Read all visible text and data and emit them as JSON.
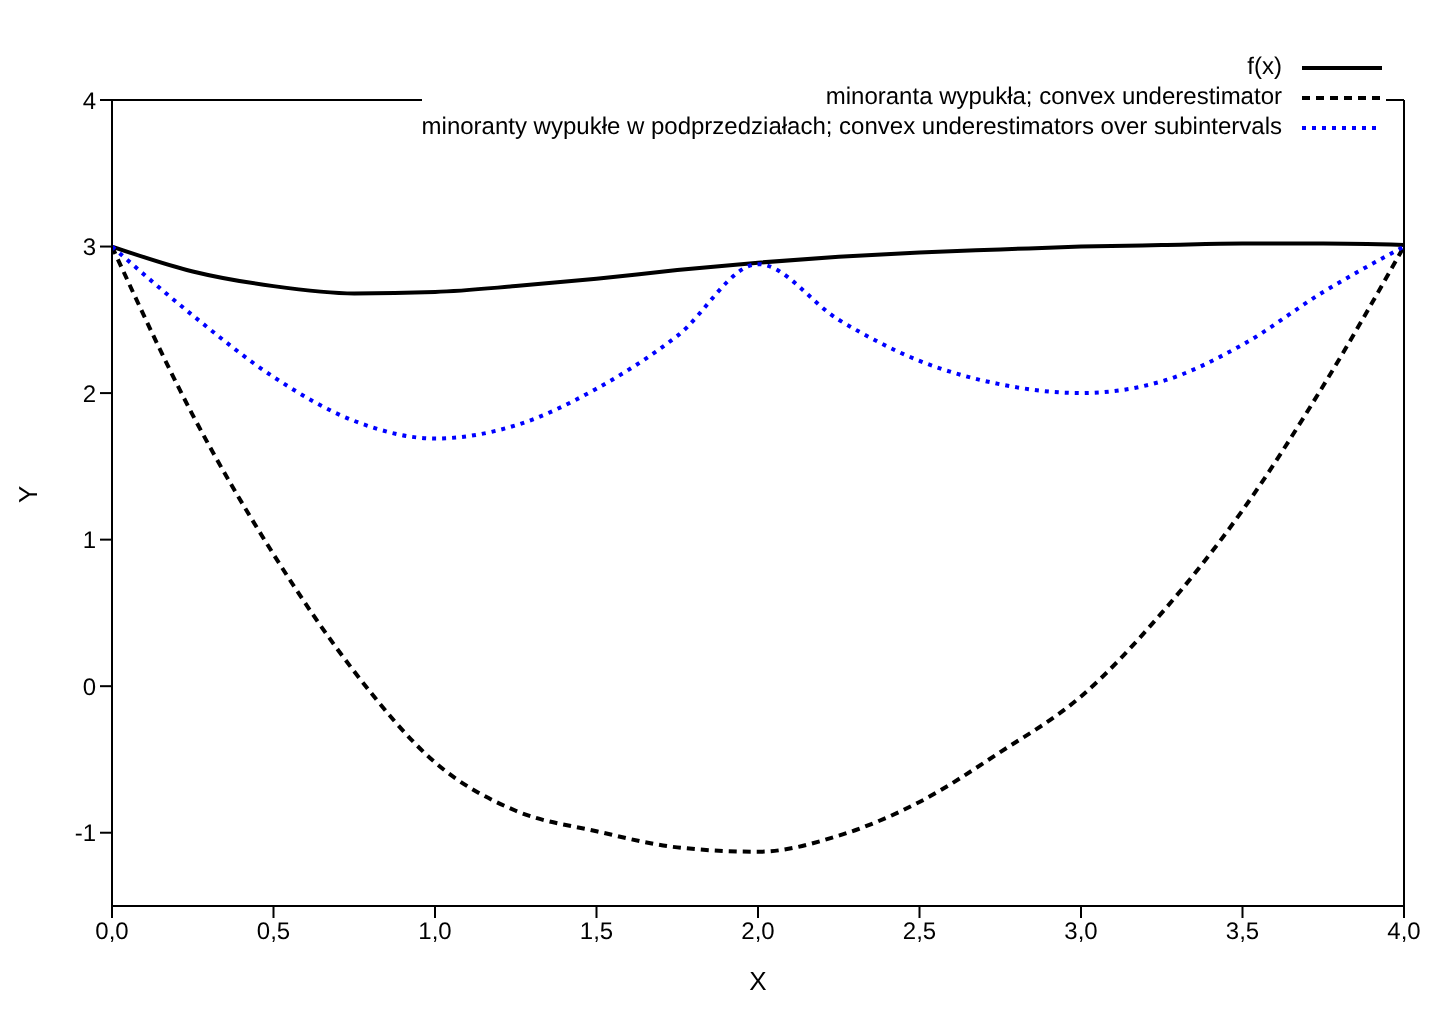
{
  "chart_data": {
    "type": "line",
    "xlabel": "X",
    "ylabel": "Y",
    "xlim": [
      0,
      4
    ],
    "ylim": [
      -1.5,
      4
    ],
    "xticks": [
      {
        "value": 0,
        "label": "0,0"
      },
      {
        "value": 0.5,
        "label": "0,5"
      },
      {
        "value": 1,
        "label": "1,0"
      },
      {
        "value": 1.5,
        "label": "1,5"
      },
      {
        "value": 2,
        "label": "2,0"
      },
      {
        "value": 2.5,
        "label": "2,5"
      },
      {
        "value": 3,
        "label": "3,0"
      },
      {
        "value": 3.5,
        "label": "3,5"
      },
      {
        "value": 4,
        "label": "4,0"
      }
    ],
    "yticks": [
      -1,
      0,
      1,
      2,
      3,
      4
    ],
    "grid": false,
    "legend": "top right",
    "marker": "none",
    "x": [
      0,
      0.25,
      0.5,
      0.75,
      1,
      1.25,
      1.5,
      1.75,
      2,
      2.25,
      2.5,
      2.75,
      3,
      3.25,
      3.5,
      3.75,
      4
    ],
    "series": [
      {
        "name": "f(x)",
        "color": "#000000",
        "line_style": "solid",
        "values": [
          3,
          2.83,
          2.73,
          2.68,
          2.69,
          2.73,
          2.78,
          2.84,
          2.89,
          2.93,
          2.96,
          2.98,
          3.0,
          3.01,
          3.02,
          3.02,
          3.01
        ]
      },
      {
        "name": "minoranta wypukła; convex underestimator",
        "color": "#000000",
        "line_style": "dashed",
        "values": [
          3,
          1.85,
          0.9,
          0.1,
          -0.52,
          -0.85,
          -0.99,
          -1.1,
          -1.13,
          -1.02,
          -0.79,
          -0.45,
          -0.07,
          0.5,
          1.2,
          2.05,
          3.0
        ]
      },
      {
        "name": "minoranty wypukłe w podprzedziałach; convex underestimators over subintervals",
        "color": "#0000ff",
        "line_style": "dotted",
        "values": [
          3,
          2.53,
          2.11,
          1.81,
          1.69,
          1.78,
          2.03,
          2.39,
          2.88,
          2.5,
          2.22,
          2.06,
          2.0,
          2.08,
          2.33,
          2.69,
          3.0
        ]
      }
    ]
  }
}
